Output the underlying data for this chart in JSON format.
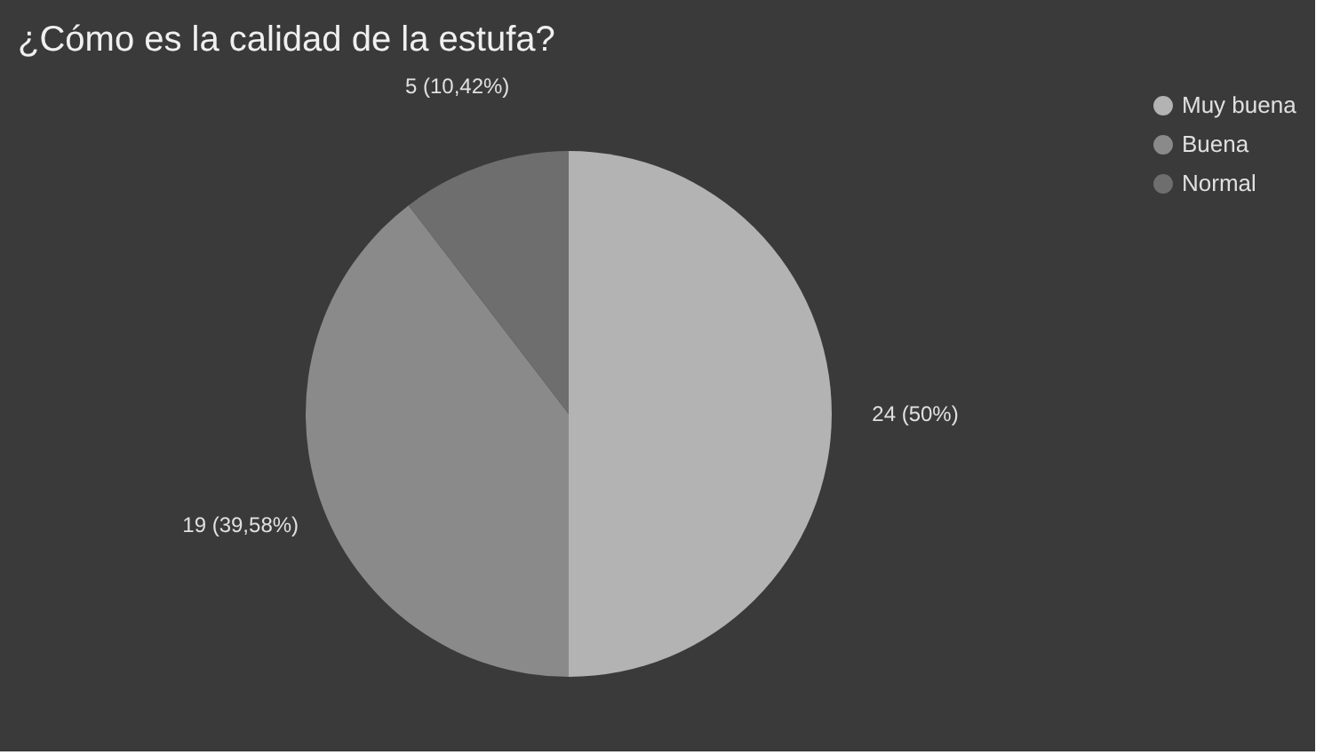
{
  "chart_data": {
    "type": "pie",
    "title": "¿Cómo es la calidad de la estufa?",
    "categories": [
      "Muy buena",
      "Buena",
      "Normal"
    ],
    "values": [
      24,
      19,
      5
    ],
    "value_labels": [
      "24 (50%)",
      "19 (39,58%)",
      "5 (10,42%)"
    ],
    "colors": [
      "#b3b3b3",
      "#8a8a8a",
      "#6e6e6e"
    ],
    "legend": "right"
  }
}
